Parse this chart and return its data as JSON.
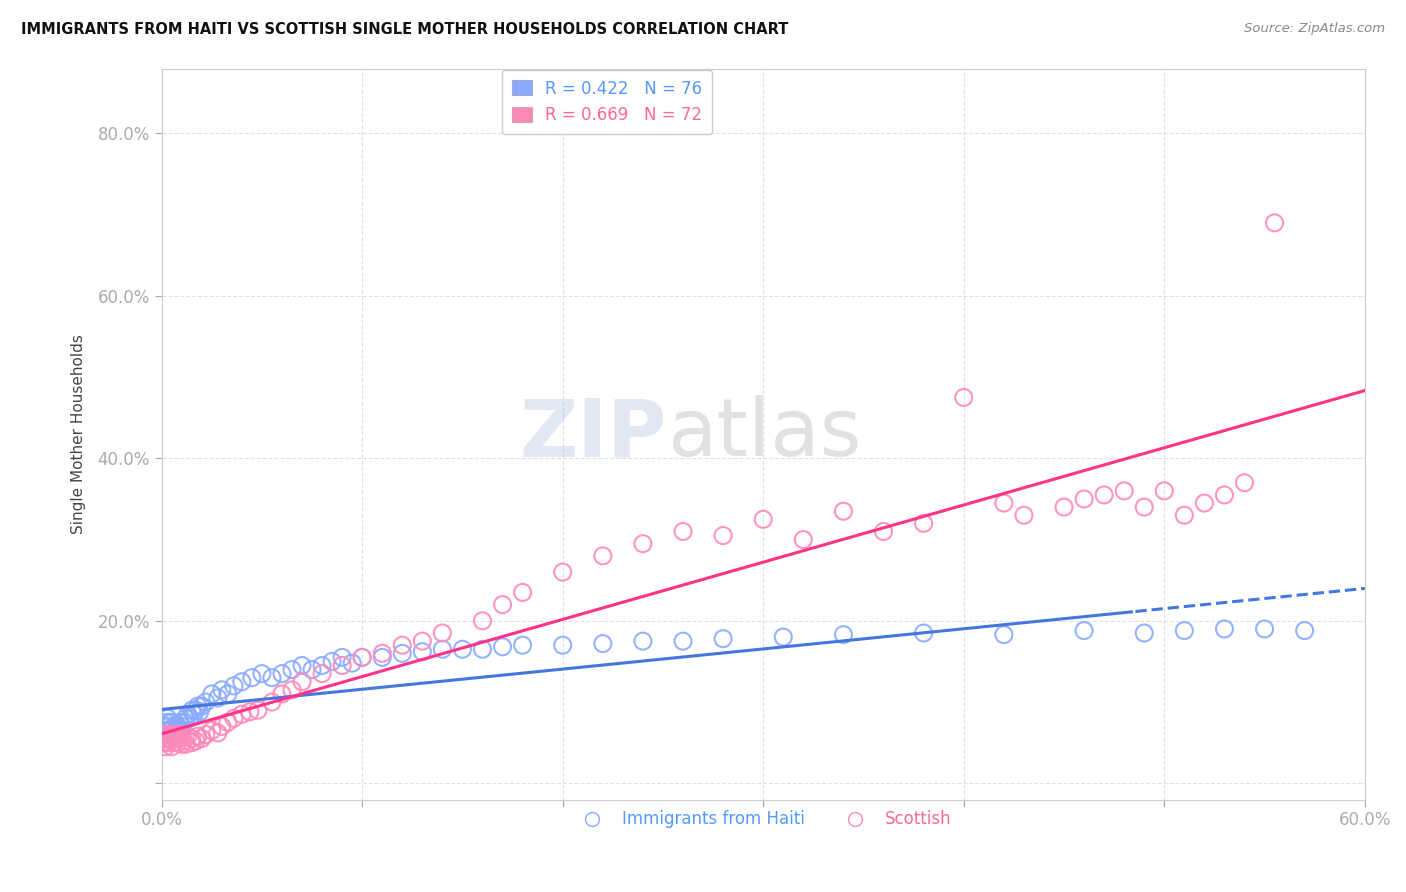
{
  "title": "IMMIGRANTS FROM HAITI VS SCOTTISH SINGLE MOTHER HOUSEHOLDS CORRELATION CHART",
  "source_text": "Source: ZipAtlas.com",
  "ylabel": "Single Mother Households",
  "watermark_zip": "ZIP",
  "watermark_atlas": "atlas",
  "xlim": [
    0.0,
    0.6
  ],
  "ylim": [
    -0.02,
    0.88
  ],
  "xticks": [
    0.0,
    0.1,
    0.2,
    0.3,
    0.4,
    0.5,
    0.6
  ],
  "xticklabels": [
    "0.0%",
    "",
    "",
    "",
    "",
    "",
    "60.0%"
  ],
  "yticks": [
    0.0,
    0.2,
    0.4,
    0.6,
    0.8
  ],
  "yticklabels": [
    "",
    "20.0%",
    "40.0%",
    "60.0%",
    "80.0%"
  ],
  "blue_color": "#88AAFF",
  "pink_color": "#FF88BB",
  "blue_line_color": "#4477DD",
  "pink_line_color": "#FF3388",
  "legend_blue_label": "R = 0.422   N = 76",
  "legend_pink_label": "R = 0.669   N = 72",
  "legend_label_blue": "Immigrants from Haiti",
  "legend_label_pink": "Scottish",
  "blue_scatter_x": [
    0.001,
    0.001,
    0.001,
    0.002,
    0.002,
    0.002,
    0.003,
    0.003,
    0.003,
    0.004,
    0.004,
    0.005,
    0.005,
    0.005,
    0.006,
    0.006,
    0.007,
    0.007,
    0.008,
    0.008,
    0.009,
    0.009,
    0.01,
    0.01,
    0.011,
    0.012,
    0.013,
    0.014,
    0.015,
    0.016,
    0.017,
    0.018,
    0.019,
    0.02,
    0.022,
    0.025,
    0.028,
    0.03,
    0.033,
    0.036,
    0.04,
    0.045,
    0.05,
    0.055,
    0.06,
    0.065,
    0.07,
    0.075,
    0.08,
    0.085,
    0.09,
    0.095,
    0.1,
    0.11,
    0.12,
    0.13,
    0.14,
    0.15,
    0.16,
    0.17,
    0.18,
    0.2,
    0.22,
    0.24,
    0.26,
    0.28,
    0.31,
    0.34,
    0.38,
    0.42,
    0.46,
    0.49,
    0.51,
    0.53,
    0.55,
    0.57
  ],
  "blue_scatter_y": [
    0.05,
    0.06,
    0.07,
    0.055,
    0.065,
    0.075,
    0.06,
    0.07,
    0.08,
    0.065,
    0.075,
    0.055,
    0.065,
    0.075,
    0.06,
    0.07,
    0.055,
    0.065,
    0.06,
    0.07,
    0.065,
    0.075,
    0.06,
    0.07,
    0.075,
    0.08,
    0.085,
    0.08,
    0.09,
    0.085,
    0.09,
    0.095,
    0.088,
    0.095,
    0.1,
    0.11,
    0.105,
    0.115,
    0.11,
    0.12,
    0.125,
    0.13,
    0.135,
    0.13,
    0.135,
    0.14,
    0.145,
    0.14,
    0.145,
    0.15,
    0.155,
    0.148,
    0.155,
    0.155,
    0.16,
    0.162,
    0.165,
    0.165,
    0.165,
    0.168,
    0.17,
    0.17,
    0.172,
    0.175,
    0.175,
    0.178,
    0.18,
    0.183,
    0.185,
    0.183,
    0.188,
    0.185,
    0.188,
    0.19,
    0.19,
    0.188
  ],
  "pink_scatter_x": [
    0.001,
    0.001,
    0.002,
    0.002,
    0.003,
    0.003,
    0.004,
    0.005,
    0.005,
    0.006,
    0.006,
    0.007,
    0.008,
    0.008,
    0.009,
    0.01,
    0.01,
    0.011,
    0.012,
    0.013,
    0.015,
    0.015,
    0.017,
    0.018,
    0.02,
    0.022,
    0.025,
    0.028,
    0.03,
    0.033,
    0.036,
    0.04,
    0.044,
    0.048,
    0.055,
    0.06,
    0.065,
    0.07,
    0.08,
    0.09,
    0.1,
    0.11,
    0.12,
    0.13,
    0.14,
    0.16,
    0.17,
    0.18,
    0.2,
    0.22,
    0.24,
    0.26,
    0.28,
    0.3,
    0.32,
    0.34,
    0.36,
    0.38,
    0.4,
    0.42,
    0.43,
    0.45,
    0.46,
    0.47,
    0.48,
    0.49,
    0.5,
    0.51,
    0.52,
    0.53,
    0.54,
    0.555
  ],
  "pink_scatter_y": [
    0.05,
    0.06,
    0.045,
    0.055,
    0.05,
    0.06,
    0.055,
    0.045,
    0.055,
    0.05,
    0.06,
    0.055,
    0.05,
    0.06,
    0.055,
    0.048,
    0.058,
    0.052,
    0.048,
    0.058,
    0.05,
    0.055,
    0.052,
    0.058,
    0.055,
    0.06,
    0.065,
    0.062,
    0.07,
    0.075,
    0.08,
    0.085,
    0.088,
    0.09,
    0.1,
    0.11,
    0.115,
    0.125,
    0.135,
    0.145,
    0.155,
    0.16,
    0.17,
    0.175,
    0.185,
    0.2,
    0.22,
    0.235,
    0.26,
    0.28,
    0.295,
    0.31,
    0.305,
    0.325,
    0.3,
    0.335,
    0.31,
    0.32,
    0.475,
    0.345,
    0.33,
    0.34,
    0.35,
    0.355,
    0.36,
    0.34,
    0.36,
    0.33,
    0.345,
    0.355,
    0.37,
    0.69
  ]
}
